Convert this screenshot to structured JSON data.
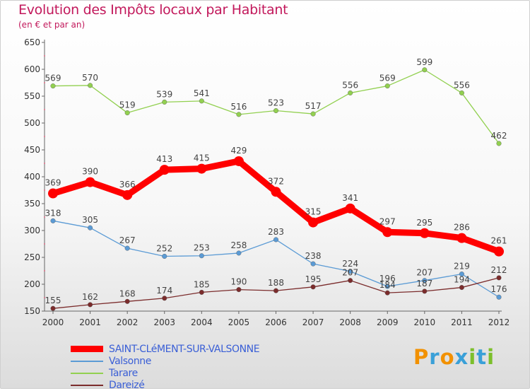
{
  "title": "Evolution des Impôts locaux par Habitant",
  "subtitle": "(en € et par an)",
  "logo_text": "Proxiti",
  "chart_data": {
    "type": "line",
    "x": [
      "2000",
      "2001",
      "2002",
      "2003",
      "2004",
      "2005",
      "2006",
      "2007",
      "2008",
      "2009",
      "2010",
      "2011",
      "2012"
    ],
    "ylim": [
      150,
      650
    ],
    "yticks": [
      150,
      200,
      250,
      300,
      350,
      400,
      450,
      500,
      550,
      600,
      650
    ],
    "grid": false,
    "legend_position": "bottom-left",
    "series": [
      {
        "name": "SAINT-CLéMENT-SUR-VALSONNE",
        "color": "#ff0000",
        "emphasis": true,
        "values": [
          369,
          390,
          366,
          413,
          415,
          429,
          372,
          315,
          341,
          297,
          295,
          286,
          261
        ]
      },
      {
        "name": "Valsonne",
        "color": "#5b9bd5",
        "values": [
          318,
          305,
          267,
          252,
          253,
          258,
          283,
          238,
          224,
          196,
          207,
          219,
          176
        ]
      },
      {
        "name": "Tarare",
        "color": "#92d050",
        "values": [
          569,
          570,
          519,
          539,
          541,
          516,
          523,
          517,
          556,
          569,
          599,
          556,
          462
        ]
      },
      {
        "name": "Dareizé",
        "color": "#7b2c2c",
        "values": [
          155,
          162,
          168,
          174,
          185,
          190,
          188,
          195,
          207,
          184,
          187,
          194,
          212
        ]
      }
    ]
  }
}
